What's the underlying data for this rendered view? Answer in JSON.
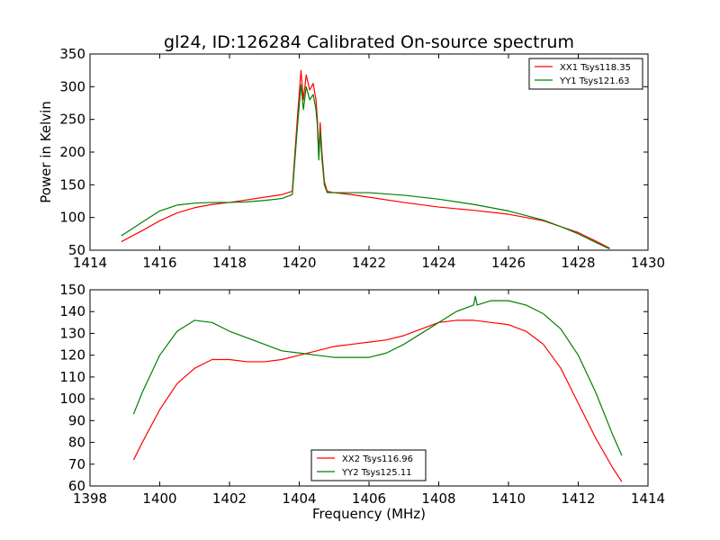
{
  "title": "gl24, ID:126284 Calibrated On-source spectrum",
  "chart_data": [
    {
      "type": "line",
      "ylabel": "Power in Kelvin",
      "xlabel": "",
      "xlim": [
        1414,
        1430
      ],
      "ylim": [
        50,
        350
      ],
      "xticks": [
        1414,
        1416,
        1418,
        1420,
        1422,
        1424,
        1426,
        1428,
        1430
      ],
      "yticks": [
        50,
        100,
        150,
        200,
        250,
        300,
        350
      ],
      "legend_position": "top-right",
      "series": [
        {
          "name": "XX1 Tsys118.35",
          "color": "#ff0000",
          "x": [
            1414.9,
            1415.5,
            1416.0,
            1416.5,
            1417.0,
            1417.5,
            1418.0,
            1418.5,
            1419.0,
            1419.5,
            1419.8,
            1419.95,
            1420.05,
            1420.12,
            1420.2,
            1420.3,
            1420.4,
            1420.48,
            1420.52,
            1420.56,
            1420.6,
            1420.65,
            1420.72,
            1420.8,
            1421.0,
            1421.5,
            1422.0,
            1423.0,
            1424.0,
            1425.0,
            1426.0,
            1427.0,
            1427.5,
            1428.0,
            1428.5,
            1428.9
          ],
          "y": [
            63,
            80,
            95,
            107,
            115,
            120,
            123,
            127,
            131,
            135,
            140,
            255,
            325,
            280,
            318,
            295,
            305,
            280,
            250,
            195,
            245,
            200,
            155,
            140,
            138,
            135,
            131,
            123,
            116,
            111,
            105,
            95,
            86,
            77,
            64,
            53
          ]
        },
        {
          "name": "YY1 Tsys121.63",
          "color": "#008000",
          "x": [
            1414.9,
            1415.5,
            1416.0,
            1416.5,
            1417.0,
            1417.5,
            1418.0,
            1418.5,
            1419.0,
            1419.5,
            1419.8,
            1419.95,
            1420.05,
            1420.12,
            1420.2,
            1420.3,
            1420.4,
            1420.48,
            1420.52,
            1420.56,
            1420.6,
            1420.65,
            1420.72,
            1420.8,
            1421.0,
            1421.5,
            1422.0,
            1423.0,
            1424.0,
            1425.0,
            1426.0,
            1427.0,
            1427.5,
            1428.0,
            1428.5,
            1428.9
          ],
          "y": [
            72,
            93,
            110,
            119,
            122,
            123,
            123,
            124,
            126,
            129,
            135,
            240,
            303,
            265,
            300,
            280,
            288,
            265,
            240,
            188,
            232,
            190,
            150,
            138,
            138,
            138,
            138,
            134,
            128,
            120,
            110,
            96,
            86,
            75,
            62,
            52
          ]
        }
      ]
    },
    {
      "type": "line",
      "ylabel": "",
      "xlabel": "Frequency (MHz)",
      "xlim": [
        1398,
        1414
      ],
      "ylim": [
        60,
        150
      ],
      "xticks": [
        1398,
        1400,
        1402,
        1404,
        1406,
        1408,
        1410,
        1412,
        1414
      ],
      "yticks": [
        60,
        70,
        80,
        90,
        100,
        110,
        120,
        130,
        140,
        150
      ],
      "legend_position": "bottom-center",
      "series": [
        {
          "name": "XX2 Tsys116.96",
          "color": "#ff0000",
          "x": [
            1399.25,
            1399.5,
            1400.0,
            1400.5,
            1401.0,
            1401.5,
            1402.0,
            1402.5,
            1403.0,
            1403.5,
            1404.0,
            1404.5,
            1405.0,
            1405.5,
            1406.0,
            1406.5,
            1407.0,
            1407.5,
            1408.0,
            1408.5,
            1409.0,
            1409.5,
            1410.0,
            1410.5,
            1411.0,
            1411.5,
            1412.0,
            1412.5,
            1413.0,
            1413.25
          ],
          "y": [
            72,
            80,
            95,
            107,
            114,
            118,
            118,
            117,
            117,
            118,
            120,
            122,
            124,
            125,
            126,
            127,
            129,
            132,
            135,
            136,
            136,
            135,
            134,
            131,
            125,
            114,
            98,
            82,
            68,
            62
          ]
        },
        {
          "name": "YY2 Tsys125.11",
          "color": "#008000",
          "x": [
            1399.25,
            1399.5,
            1400.0,
            1400.5,
            1401.0,
            1401.5,
            1402.0,
            1402.5,
            1403.0,
            1403.5,
            1404.0,
            1404.5,
            1405.0,
            1405.5,
            1406.0,
            1406.5,
            1407.0,
            1407.5,
            1408.0,
            1408.5,
            1409.0,
            1409.05,
            1409.1,
            1409.5,
            1410.0,
            1410.5,
            1411.0,
            1411.5,
            1412.0,
            1412.5,
            1413.0,
            1413.25
          ],
          "y": [
            93,
            103,
            120,
            131,
            136,
            135,
            131,
            128,
            125,
            122,
            121,
            120,
            119,
            119,
            119,
            121,
            125,
            130,
            135,
            140,
            143,
            147,
            143,
            145,
            145,
            143,
            139,
            132,
            120,
            103,
            83,
            74
          ]
        }
      ]
    }
  ]
}
